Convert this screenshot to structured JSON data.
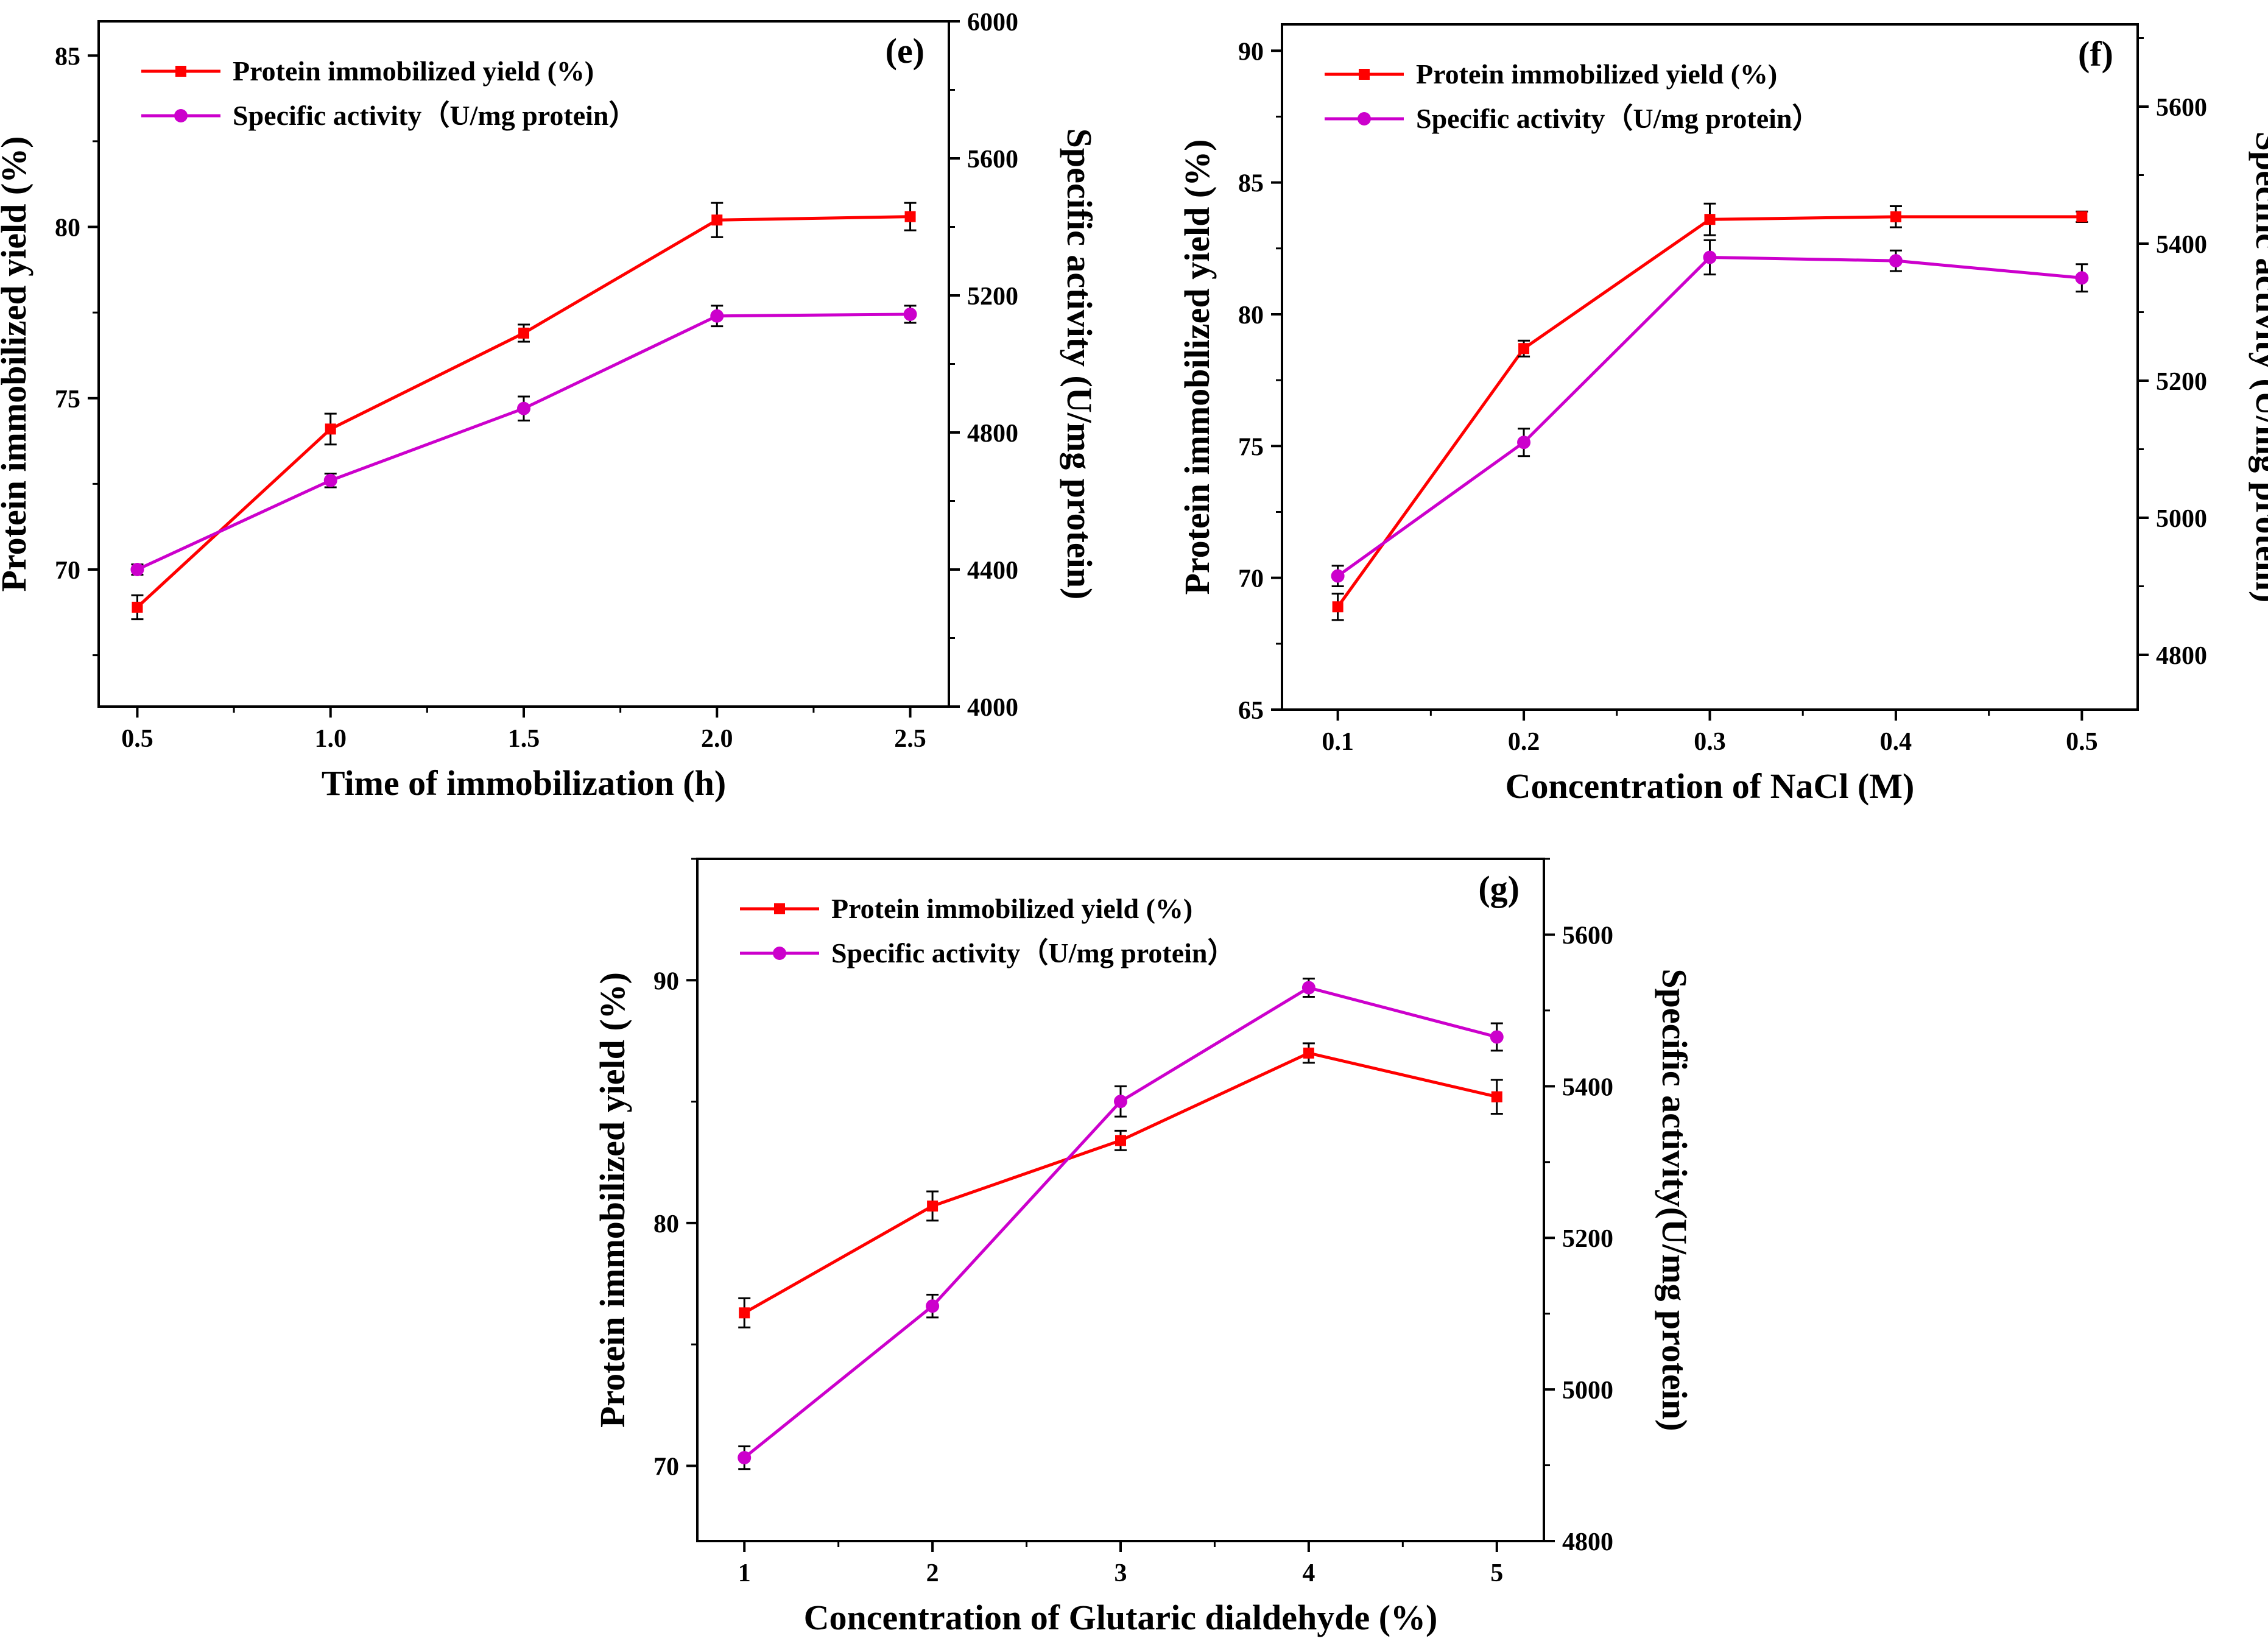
{
  "colors": {
    "yield": "#ff0000",
    "activity": "#cc00cc",
    "axis": "#000000",
    "errorbar": "#000000"
  },
  "chart_data": [
    {
      "type": "line",
      "panel_label": "(e)",
      "xlabel": "Time of immobilization (h)",
      "ylabel": "Protein immobilized yield (%)",
      "y2label": "Specific activity (U/mg protein)",
      "x": [
        0.5,
        1.0,
        1.5,
        2.0,
        2.5
      ],
      "xticks": [
        "0.5",
        "1.0",
        "1.5",
        "2.0",
        "2.5"
      ],
      "xlim": [
        0.4,
        2.6
      ],
      "ylim": [
        66.0,
        86.0
      ],
      "yticks": [
        70,
        75,
        80,
        85
      ],
      "y2lim": [
        4000,
        6000
      ],
      "y2ticks": [
        4000,
        4400,
        4800,
        5200,
        5600,
        6000
      ],
      "series": [
        {
          "name": "Protein immobilized yield (%)",
          "axis": "left",
          "color_key": "yield",
          "marker": "square",
          "values": [
            68.9,
            74.1,
            76.9,
            80.2,
            80.3
          ],
          "errors": [
            0.35,
            0.45,
            0.25,
            0.5,
            0.4
          ]
        },
        {
          "name": "Specific activity（U/mg protein）",
          "axis": "right",
          "color_key": "activity",
          "marker": "circle",
          "values": [
            4400,
            4660,
            4870,
            5140,
            5145
          ],
          "errors": [
            15,
            20,
            35,
            30,
            25
          ]
        }
      ]
    },
    {
      "type": "line",
      "panel_label": "(f)",
      "xlabel": "Concentration of NaCl (M)",
      "ylabel": "Protein immobilized yield (%)",
      "y2label": "Specific activity (U/mg protein)",
      "x": [
        0.1,
        0.2,
        0.3,
        0.4,
        0.5
      ],
      "xticks": [
        "0.1",
        "0.2",
        "0.3",
        "0.4",
        "0.5"
      ],
      "xlim": [
        0.07,
        0.53
      ],
      "ylim": [
        65.0,
        91.0
      ],
      "yticks": [
        65,
        70,
        75,
        80,
        85,
        90
      ],
      "y2lim": [
        4720,
        5720
      ],
      "y2ticks": [
        4800,
        5000,
        5200,
        5400,
        5600
      ],
      "series": [
        {
          "name": "Protein immobilized yield (%)",
          "axis": "left",
          "color_key": "yield",
          "marker": "square",
          "values": [
            68.9,
            78.7,
            83.6,
            83.7,
            83.7
          ],
          "errors": [
            0.5,
            0.3,
            0.6,
            0.4,
            0.2
          ]
        },
        {
          "name": "Specific activity（U/mg protein）",
          "axis": "right",
          "color_key": "activity",
          "marker": "circle",
          "values": [
            4915,
            5110,
            5380,
            5375,
            5350
          ],
          "errors": [
            15,
            20,
            25,
            15,
            20
          ]
        }
      ]
    },
    {
      "type": "line",
      "panel_label": "(g)",
      "xlabel": "Concentration of Glutaric dialdehyde (%)",
      "ylabel": "Protein immobilized yield (%)",
      "y2label": "Specific activity(U/mg protein)",
      "x": [
        1,
        2,
        3,
        4,
        5
      ],
      "xticks": [
        "1",
        "2",
        "3",
        "4",
        "5"
      ],
      "xlim": [
        0.75,
        5.25
      ],
      "ylim": [
        66.9,
        95.0
      ],
      "yticks": [
        70,
        80,
        90
      ],
      "y2lim": [
        4800,
        5700
      ],
      "y2ticks": [
        4800,
        5000,
        5200,
        5400,
        5600
      ],
      "series": [
        {
          "name": "Protein immobilized yield (%)",
          "axis": "left",
          "color_key": "yield",
          "marker": "square",
          "values": [
            76.3,
            80.7,
            83.4,
            87.0,
            85.2
          ],
          "errors": [
            0.6,
            0.6,
            0.4,
            0.4,
            0.7
          ]
        },
        {
          "name": "Specific activity（U/mg protein）",
          "axis": "right",
          "color_key": "activity",
          "marker": "circle",
          "values": [
            4910,
            5110,
            5380,
            5530,
            5465
          ],
          "errors": [
            15,
            15,
            20,
            12,
            18
          ]
        }
      ]
    }
  ]
}
